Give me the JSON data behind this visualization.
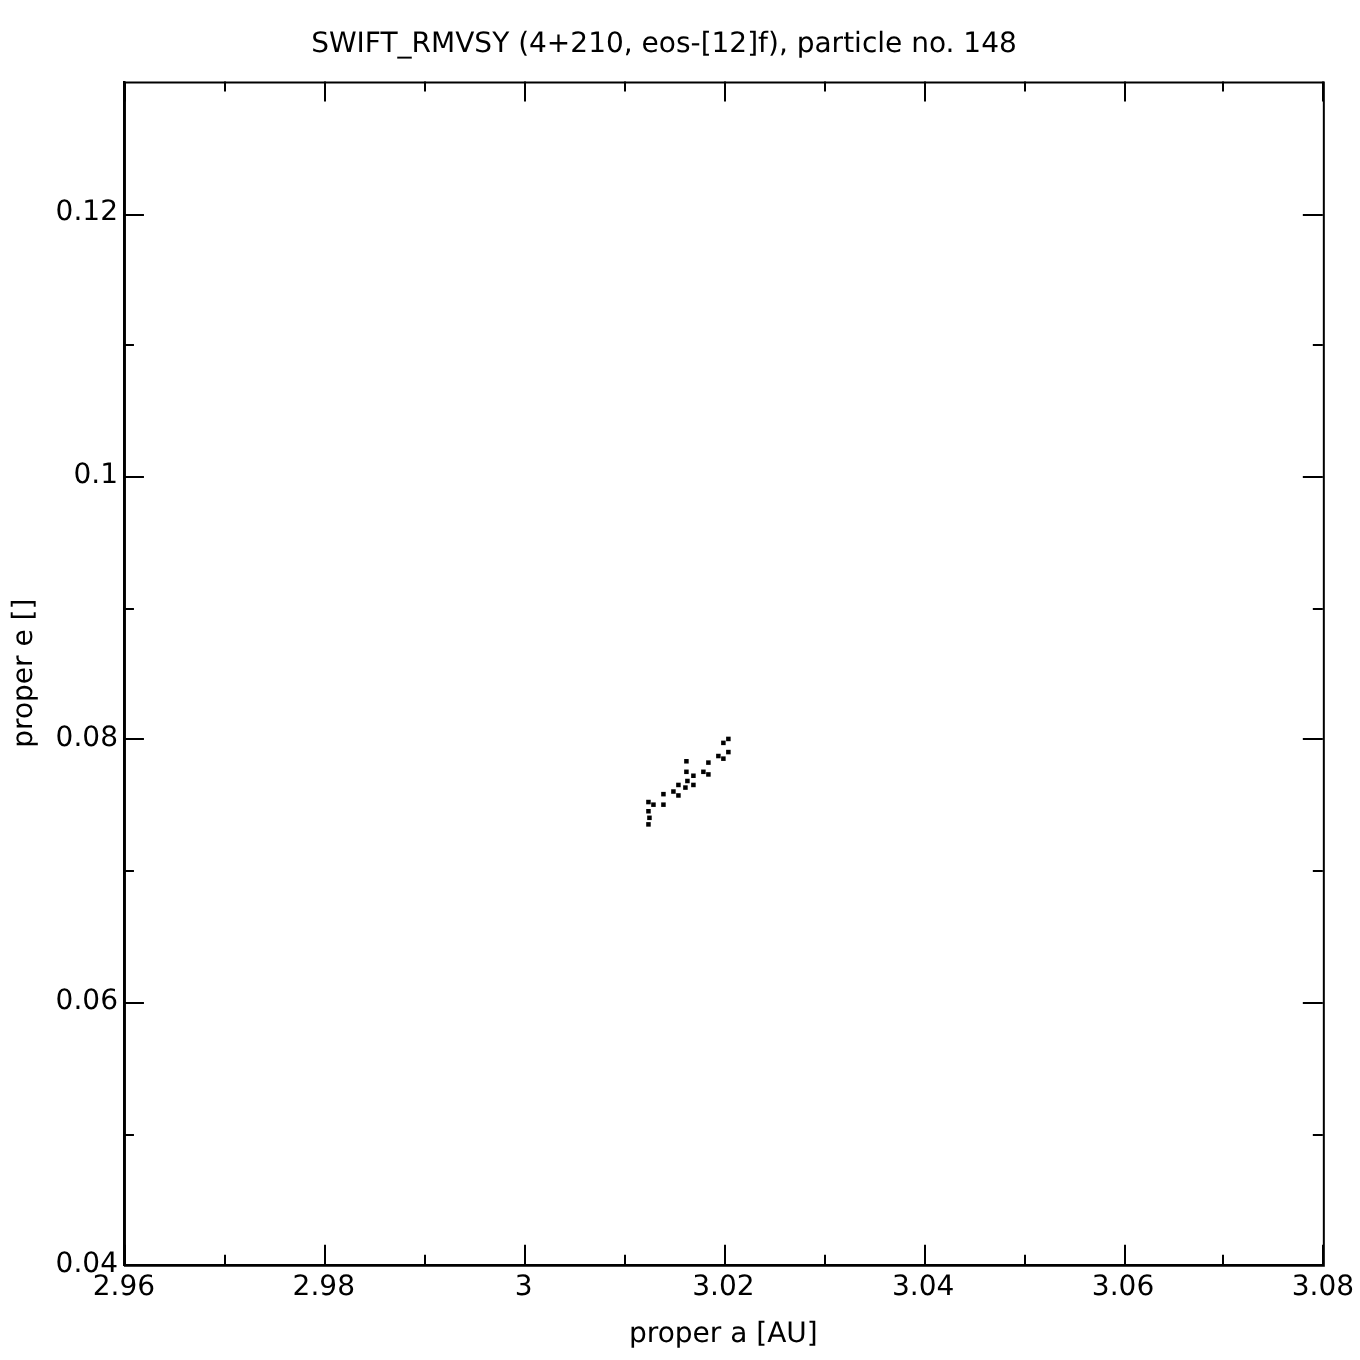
{
  "chart_data": {
    "type": "scatter",
    "title": "SWIFT_RMVSY (4+210, eos-[12]f), particle no. 148",
    "xlabel": "proper a [AU]",
    "ylabel": "proper e []",
    "x": [
      3.0125,
      3.014,
      3.0155,
      3.017,
      3.0185,
      3.02,
      3.0205,
      3.0125,
      3.014,
      3.0155,
      3.017,
      3.0185,
      3.02,
      3.0205,
      3.0125,
      3.0126,
      3.0163,
      3.0163,
      3.0164,
      3.0162,
      3.013,
      3.015,
      3.018,
      3.0195
    ],
    "series": [
      {
        "color": "#000000",
        "values": [
          0.0752,
          0.0758,
          0.0765,
          0.0772,
          0.0782,
          0.0797,
          0.08,
          0.0745,
          0.075,
          0.0757,
          0.0765,
          0.0773,
          0.0785,
          0.079,
          0.0735,
          0.074,
          0.0783,
          0.0775,
          0.0768,
          0.0763,
          0.075,
          0.076,
          0.0775,
          0.0787
        ]
      }
    ],
    "marker": "square",
    "xlim": [
      2.96,
      3.08
    ],
    "ylim": [
      0.04,
      0.13
    ],
    "xticks": [
      2.96,
      {
        "value": 2.97,
        "label": null
      },
      2.98,
      {
        "value": 2.99,
        "label": null
      },
      3,
      {
        "value": 3.01,
        "label": null
      },
      3.02,
      {
        "value": 3.03,
        "label": null
      },
      3.04,
      {
        "value": 3.05,
        "label": null
      },
      3.06,
      {
        "value": 3.07,
        "label": null
      },
      3.08
    ],
    "yticks": [
      0.04,
      {
        "value": 0.05,
        "label": null
      },
      0.06,
      {
        "value": 0.07,
        "label": null
      },
      0.08,
      {
        "value": 0.09,
        "label": null
      },
      0.1,
      {
        "value": 0.11,
        "label": null
      },
      0.12
    ],
    "grid": false,
    "legend": false
  }
}
